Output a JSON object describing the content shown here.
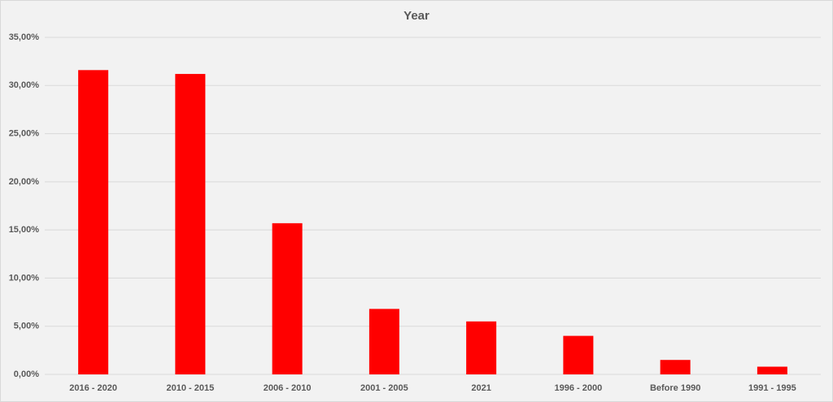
{
  "chart_data": {
    "type": "bar",
    "title": "Year",
    "categories": [
      "2016 - 2020",
      "2010 - 2015",
      "2006 - 2010",
      "2001 - 2005",
      "2021",
      "1996 - 2000",
      "Before 1990",
      "1991 - 1995"
    ],
    "values": [
      31.6,
      31.2,
      15.7,
      6.8,
      5.5,
      4.0,
      1.5,
      0.8
    ],
    "color": "#ff0000",
    "ylim": [
      0,
      35
    ],
    "yticks": [
      {
        "value": 0,
        "label": "0,00%"
      },
      {
        "value": 5,
        "label": "5,00%"
      },
      {
        "value": 10,
        "label": "10,00%"
      },
      {
        "value": 15,
        "label": "15,00%"
      },
      {
        "value": 20,
        "label": "20,00%"
      },
      {
        "value": 25,
        "label": "25,00%"
      },
      {
        "value": 30,
        "label": "30,00%"
      },
      {
        "value": 35,
        "label": "35,00%"
      }
    ],
    "grid": true
  }
}
